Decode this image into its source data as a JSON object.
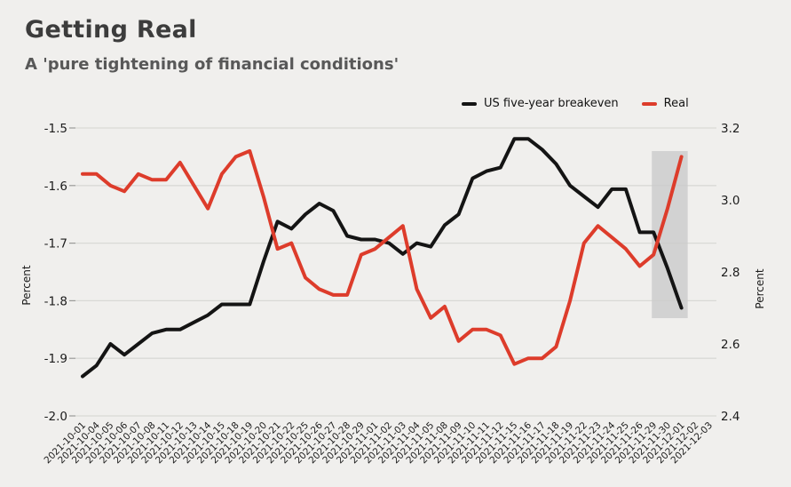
{
  "header": {
    "title": "Getting Real",
    "subtitle": "A 'pure tightening of financial conditions'"
  },
  "legend": [
    {
      "label": "US five-year breakeven",
      "color": "#141414"
    },
    {
      "label": "Real",
      "color": "#dd3c2b"
    }
  ],
  "colors": {
    "background": "#f0efed",
    "gridline": "#d9d9d6",
    "highlight_band": "#cbcbcb",
    "axis_text": "#1c1c1c",
    "breakeven_line": "#141414",
    "real_line": "#dd3c2b"
  },
  "chart_data": {
    "type": "line",
    "title": "Getting Real",
    "subtitle": "A 'pure tightening of financial conditions'",
    "grid": true,
    "legend_position": "top",
    "categories": [
      "2021-10-01",
      "2021-10-04",
      "2021-10-05",
      "2021-10-06",
      "2021-10-07",
      "2021-10-08",
      "2021-10-11",
      "2021-10-12",
      "2021-10-13",
      "2021-10-14",
      "2021-10-15",
      "2021-10-18",
      "2021-10-19",
      "2021-10-20",
      "2021-10-21",
      "2021-10-22",
      "2021-10-25",
      "2021-10-26",
      "2021-10-27",
      "2021-10-28",
      "2021-10-29",
      "2021-11-01",
      "2021-11-02",
      "2021-11-03",
      "2021-11-04",
      "2021-11-05",
      "2021-11-08",
      "2021-11-09",
      "2021-11-10",
      "2021-11-11",
      "2021-11-12",
      "2021-11-15",
      "2021-11-16",
      "2021-11-17",
      "2021-11-18",
      "2021-11-19",
      "2021-11-22",
      "2021-11-23",
      "2021-11-24",
      "2021-11-25",
      "2021-11-26",
      "2021-11-29",
      "2021-11-30",
      "2021-12-01",
      "2021-12-02",
      "2021-12-03"
    ],
    "series": [
      {
        "name": "US five-year breakeven",
        "axis": "right",
        "color": "#141414",
        "values": [
          2.51,
          2.54,
          2.6,
          2.57,
          2.6,
          2.63,
          2.64,
          2.64,
          2.66,
          2.68,
          2.71,
          2.71,
          2.71,
          2.83,
          2.94,
          2.92,
          2.96,
          2.99,
          2.97,
          2.9,
          2.89,
          2.89,
          2.88,
          2.85,
          2.88,
          2.87,
          2.93,
          2.96,
          3.06,
          3.08,
          3.09,
          3.17,
          3.17,
          3.14,
          3.1,
          3.04,
          3.01,
          2.98,
          3.03,
          3.03,
          2.91,
          2.91,
          2.81,
          2.7,
          null,
          null
        ]
      },
      {
        "name": "Real",
        "axis": "left",
        "color": "#dd3c2b",
        "values": [
          -1.58,
          -1.58,
          -1.6,
          -1.61,
          -1.58,
          -1.59,
          -1.59,
          -1.56,
          -1.6,
          -1.64,
          -1.58,
          -1.55,
          -1.54,
          -1.62,
          -1.71,
          -1.7,
          -1.76,
          -1.78,
          -1.79,
          -1.79,
          -1.72,
          -1.71,
          -1.69,
          -1.67,
          -1.78,
          -1.83,
          -1.81,
          -1.87,
          -1.85,
          -1.85,
          -1.86,
          -1.91,
          -1.9,
          -1.9,
          -1.88,
          -1.8,
          -1.7,
          -1.67,
          -1.69,
          -1.71,
          -1.74,
          -1.72,
          -1.64,
          -1.55,
          null,
          null
        ]
      }
    ],
    "left_axis": {
      "label": "Percent",
      "min": -2.0,
      "max": -1.5,
      "ticks": [
        -1.5,
        -1.6,
        -1.7,
        -1.8,
        -1.9,
        -2.0
      ]
    },
    "right_axis": {
      "label": "Percent",
      "min": 2.4,
      "max": 3.2,
      "ticks": [
        3.2,
        3.0,
        2.8,
        2.6,
        2.4
      ]
    },
    "highlight_band": {
      "from": "2021-11-29",
      "to": "2021-12-01"
    }
  }
}
